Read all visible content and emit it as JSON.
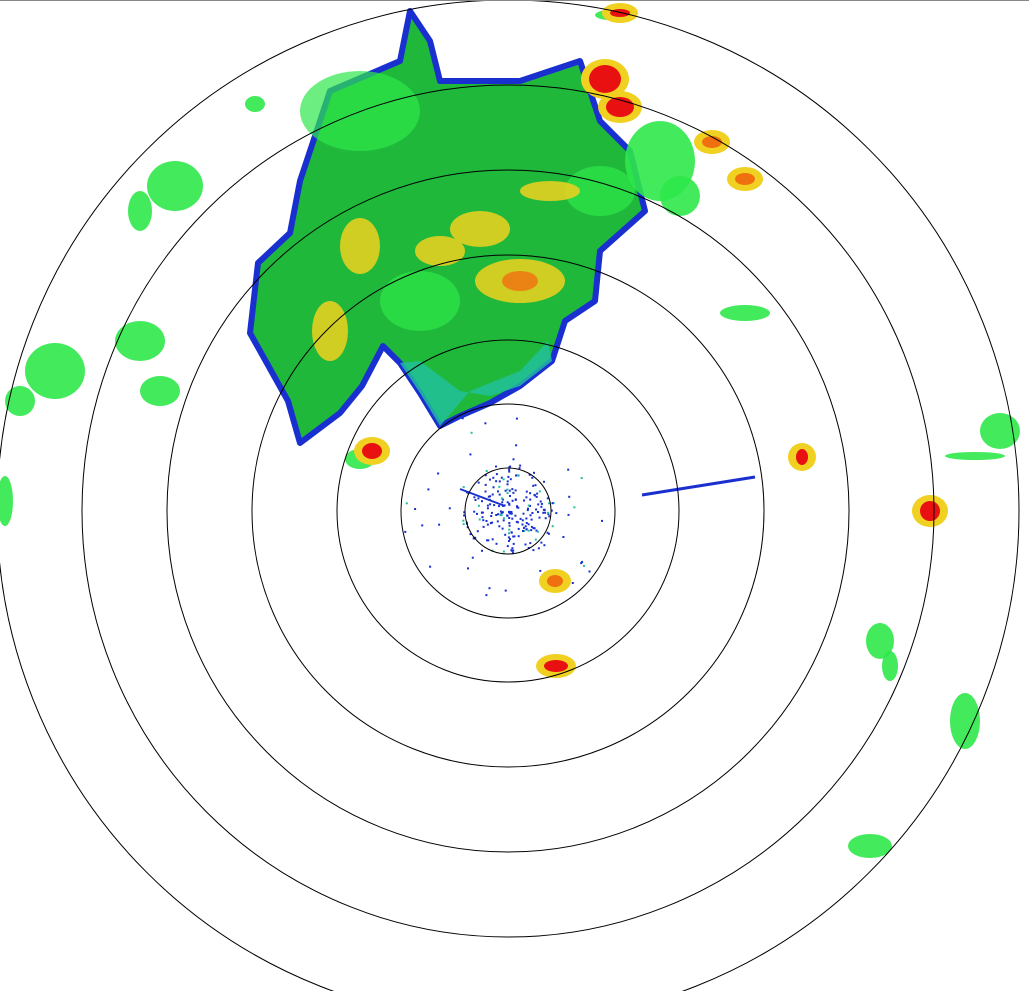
{
  "radar": {
    "type": "reflectivity-ppi",
    "range_rings": 7,
    "colors": {
      "ring": "#000000",
      "weak": "#1a2fd0",
      "light": "#22c0a0",
      "moderate": "#1fb83a",
      "bright_green": "#2ee84a",
      "heavy": "#f0d020",
      "intense": "#f07010",
      "extreme": "#e81010"
    }
  }
}
